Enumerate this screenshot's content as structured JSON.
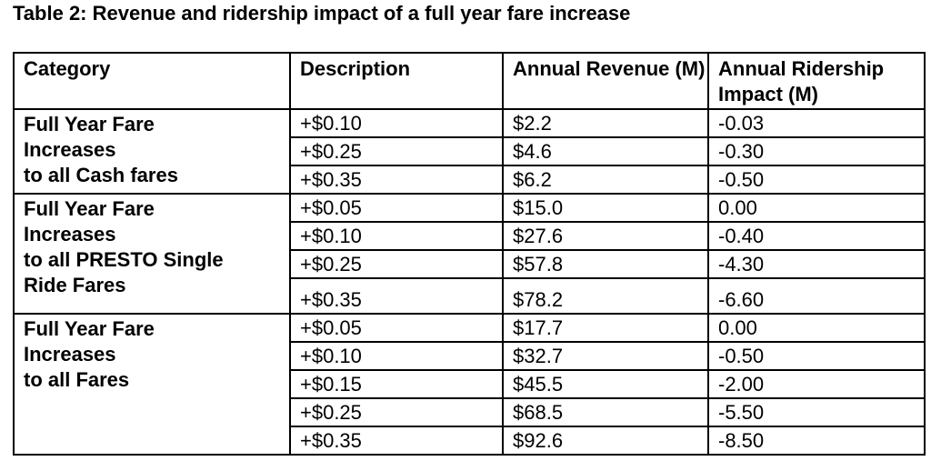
{
  "caption": "Table 2: Revenue and ridership impact of a full year fare increase",
  "headers": {
    "category": "Category",
    "description": "Description",
    "revenue": "Annual Revenue (M)",
    "ridership": "Annual Ridership Impact (M)"
  },
  "groups": [
    {
      "category_lines": [
        "Full Year Fare",
        "Increases",
        "to all Cash fares"
      ],
      "rows": [
        {
          "description": "+$0.10",
          "revenue": "$2.2",
          "ridership": "-0.03"
        },
        {
          "description": "+$0.25",
          "revenue": "$4.6",
          "ridership": "-0.30"
        },
        {
          "description": "+$0.35",
          "revenue": "$6.2",
          "ridership": "-0.50"
        }
      ]
    },
    {
      "category_lines": [
        "Full Year Fare",
        "Increases",
        "to all PRESTO Single",
        "Ride Fares"
      ],
      "rows": [
        {
          "description": "+$0.05",
          "revenue": "$15.0",
          "ridership": "0.00"
        },
        {
          "description": "+$0.10",
          "revenue": "$27.6",
          "ridership": "-0.40"
        },
        {
          "description": "+$0.25",
          "revenue": "$57.8",
          "ridership": "-4.30"
        },
        {
          "description": "+$0.35",
          "revenue": "$78.2",
          "ridership": "-6.60"
        }
      ]
    },
    {
      "category_lines": [
        "Full Year Fare",
        "Increases",
        "to all Fares"
      ],
      "rows": [
        {
          "description": "+$0.05",
          "revenue": "$17.7",
          "ridership": "0.00"
        },
        {
          "description": "+$0.10",
          "revenue": "$32.7",
          "ridership": "-0.50"
        },
        {
          "description": "+$0.15",
          "revenue": "$45.5",
          "ridership": "-2.00"
        },
        {
          "description": "+$0.25",
          "revenue": "$68.5",
          "ridership": "-5.50"
        },
        {
          "description": "+$0.35",
          "revenue": "$92.6",
          "ridership": "-8.50"
        }
      ]
    }
  ]
}
